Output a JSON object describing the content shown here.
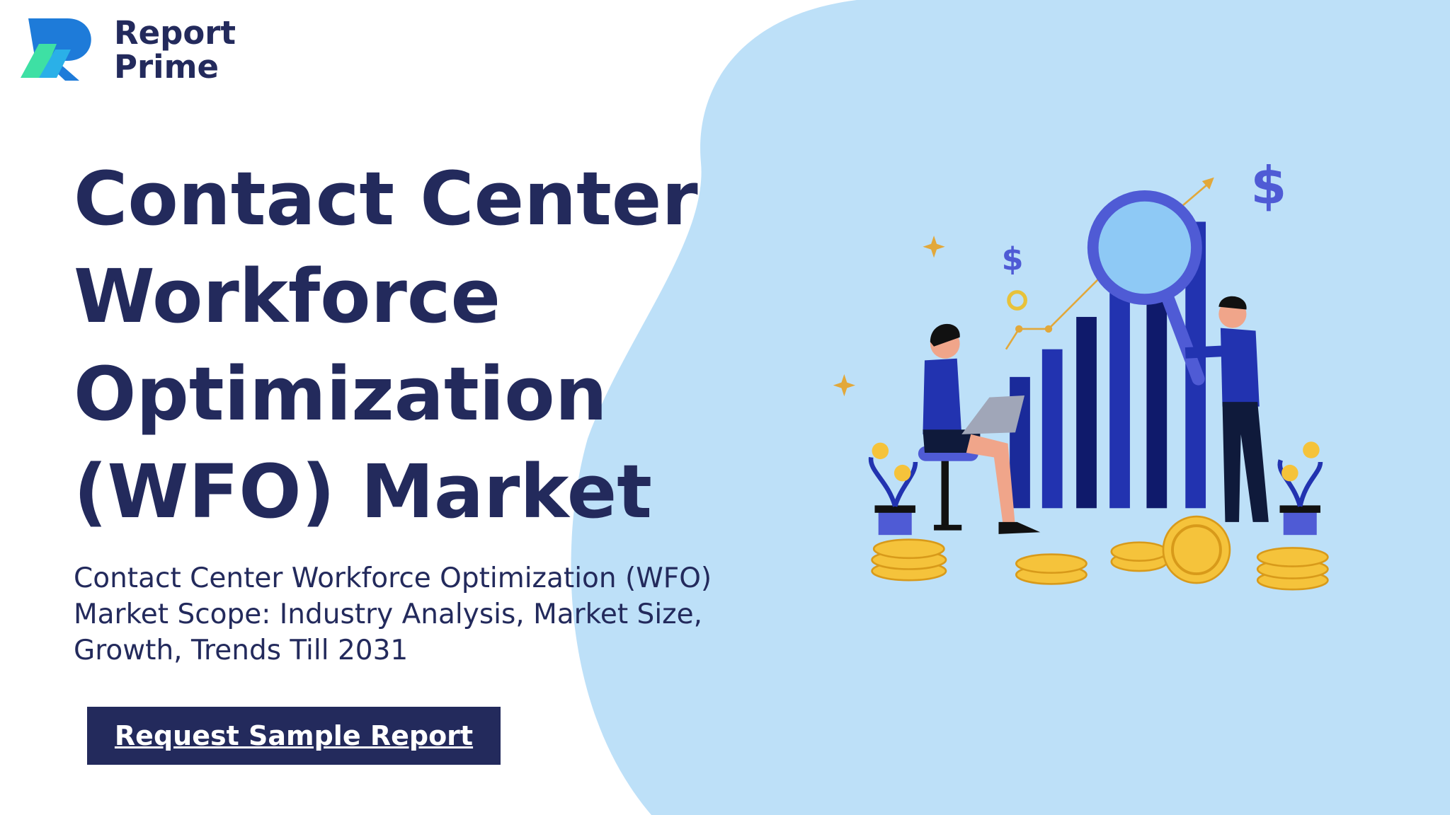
{
  "logo": {
    "line1": "Report",
    "line2": "Prime"
  },
  "title_lines": [
    "Contact Center",
    "Workforce",
    "Optimization",
    "(WFO) Market"
  ],
  "subtitle": "Contact Center Workforce Optimization (WFO) Market Scope: Industry Analysis, Market Size, Growth, Trends Till 2031",
  "button": "Request Sample Report",
  "illustration": {
    "symbols": [
      "$",
      "$"
    ]
  }
}
